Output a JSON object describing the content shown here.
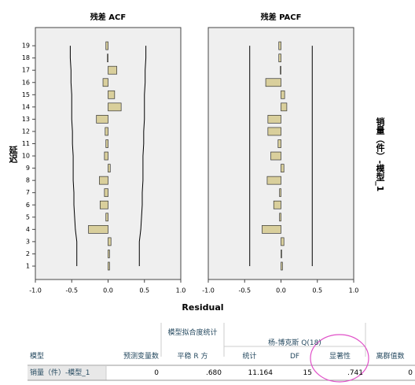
{
  "chart_data": [
    {
      "type": "bar",
      "title": "残差 ACF",
      "ylabel": "延迟",
      "categories": [
        "1",
        "2",
        "3",
        "4",
        "5",
        "6",
        "7",
        "8",
        "9",
        "10",
        "11",
        "12",
        "13",
        "14",
        "15",
        "16",
        "17",
        "18",
        "19"
      ],
      "values": [
        0.02,
        0.02,
        0.04,
        -0.27,
        -0.03,
        -0.11,
        -0.05,
        -0.12,
        0.03,
        -0.05,
        -0.03,
        -0.04,
        -0.16,
        0.18,
        0.09,
        -0.07,
        0.12,
        -0.01,
        -0.03
      ],
      "upper_limit": [
        0.43,
        0.43,
        0.43,
        0.45,
        0.46,
        0.47,
        0.47,
        0.48,
        0.48,
        0.48,
        0.49,
        0.49,
        0.5,
        0.5,
        0.5,
        0.51,
        0.51,
        0.52,
        0.52
      ],
      "lower_limit": [
        -0.43,
        -0.43,
        -0.43,
        -0.45,
        -0.46,
        -0.47,
        -0.47,
        -0.48,
        -0.48,
        -0.48,
        -0.49,
        -0.49,
        -0.5,
        -0.5,
        -0.5,
        -0.51,
        -0.51,
        -0.52,
        -0.52
      ],
      "color": "#d9cf9c",
      "xlim": [
        -1,
        1
      ],
      "xticks": [
        {
          "value": -1,
          "label": "-1.0"
        },
        {
          "value": -0.5,
          "label": "-0.5"
        },
        {
          "value": 0,
          "label": "0.0"
        },
        {
          "value": 0.5,
          "label": "0.5"
        },
        {
          "value": 1,
          "label": "1.0"
        }
      ]
    },
    {
      "type": "bar",
      "title": "残差 PACF",
      "values": [
        0.02,
        0.01,
        0.04,
        -0.26,
        -0.02,
        -0.1,
        -0.02,
        -0.19,
        0.04,
        -0.14,
        -0.04,
        -0.18,
        -0.18,
        0.08,
        0.05,
        -0.21,
        -0.01,
        -0.03,
        -0.03
      ],
      "upper_limit": [
        0.43,
        0.43,
        0.43,
        0.43,
        0.43,
        0.43,
        0.43,
        0.43,
        0.43,
        0.43,
        0.43,
        0.43,
        0.43,
        0.43,
        0.43,
        0.43,
        0.43,
        0.43,
        0.43
      ],
      "lower_limit": [
        -0.43,
        -0.43,
        -0.43,
        -0.43,
        -0.43,
        -0.43,
        -0.43,
        -0.43,
        -0.43,
        -0.43,
        -0.43,
        -0.43,
        -0.43,
        -0.43,
        -0.43,
        -0.43,
        -0.43,
        -0.43,
        -0.43
      ],
      "color": "#d9cf9c",
      "xlim": [
        -1,
        1
      ],
      "xticks": [
        {
          "value": -1,
          "label": "-1.0"
        },
        {
          "value": -0.5,
          "label": "-0.5"
        },
        {
          "value": 0,
          "label": "0.0"
        },
        {
          "value": 0.5,
          "label": "0.5"
        },
        {
          "value": 1,
          "label": "1.0"
        }
      ]
    }
  ],
  "xlabel": "Residual",
  "side_label": "销量（件）-模型_1",
  "table": {
    "group_headers": [
      "模型拟合度统计",
      "杨-博克斯 Q(18)"
    ],
    "columns": [
      "模型",
      "预测变量数",
      "平稳 R 方",
      "统计",
      "DF",
      "显著性",
      "离群值数"
    ],
    "rows": [
      [
        "销量（件）-模型_1",
        "0",
        ".680",
        "11.164",
        "15",
        ".741",
        "0"
      ]
    ]
  }
}
